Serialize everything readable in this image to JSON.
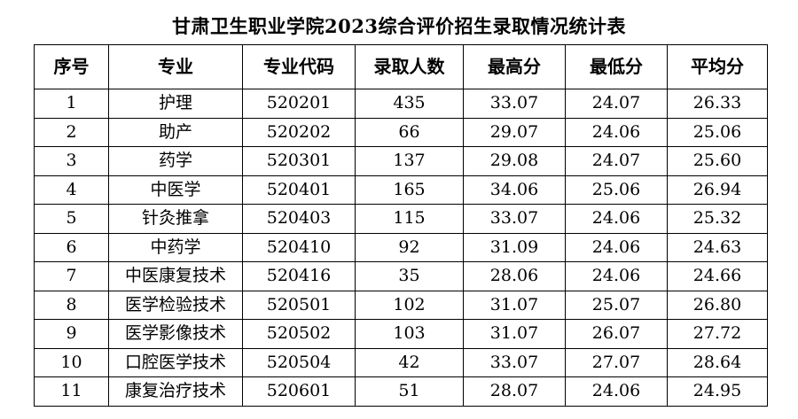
{
  "title": "甘肃卫生职业学院2023综合评价招生录取情况统计表",
  "headers": [
    "序号",
    "专业",
    "专业代码",
    "录取人数",
    "最高分",
    "最低分",
    "平均分"
  ],
  "rows": [
    [
      "1",
      "护理",
      "520201",
      "435",
      "33.07",
      "24.07",
      "26.33"
    ],
    [
      "2",
      "助产",
      "520202",
      "66",
      "29.07",
      "24.06",
      "25.06"
    ],
    [
      "3",
      "药学",
      "520301",
      "137",
      "29.08",
      "24.07",
      "25.60"
    ],
    [
      "4",
      "中医学",
      "520401",
      "165",
      "34.06",
      "25.06",
      "26.94"
    ],
    [
      "5",
      "针灸推拿",
      "520403",
      "115",
      "33.07",
      "24.06",
      "25.32"
    ],
    [
      "6",
      "中药学",
      "520410",
      "92",
      "31.09",
      "24.06",
      "24.63"
    ],
    [
      "7",
      "中医康复技术",
      "520416",
      "35",
      "28.06",
      "24.06",
      "24.66"
    ],
    [
      "8",
      "医学检验技术",
      "520501",
      "102",
      "31.07",
      "25.07",
      "26.80"
    ],
    [
      "9",
      "医学影像技术",
      "520502",
      "103",
      "31.07",
      "26.07",
      "27.72"
    ],
    [
      "10",
      "口腔医学技术",
      "520504",
      "42",
      "33.07",
      "27.07",
      "28.64"
    ],
    [
      "11",
      "康复治疗技术",
      "520601",
      "51",
      "28.07",
      "24.06",
      "24.95"
    ]
  ]
}
